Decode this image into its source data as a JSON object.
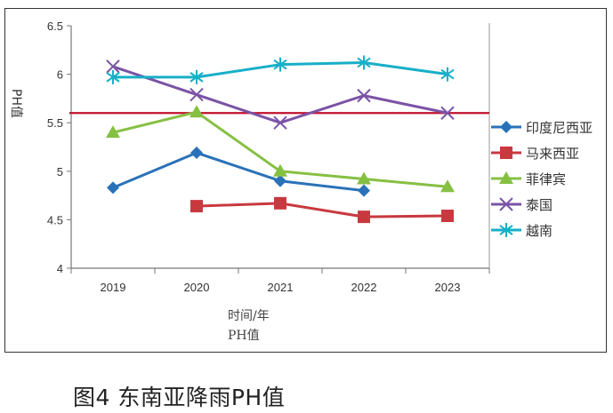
{
  "chart_data": {
    "type": "line",
    "title": "",
    "xlabel": "时间/年",
    "xlabel2": "PH值",
    "ylabel": "PH值",
    "categories": [
      "2019",
      "2020",
      "2021",
      "2022",
      "2023"
    ],
    "ylim": [
      4,
      6.5
    ],
    "yticks": [
      "4",
      "4.5",
      "5",
      "5.5",
      "6",
      "6.5"
    ],
    "grid": false,
    "legend_position": "right",
    "reference_line": {
      "value": 5.6,
      "color": "#c0112b"
    },
    "series": [
      {
        "name": "印度尼西亚",
        "color": "#2a72b8",
        "marker": "diamond",
        "values": [
          4.83,
          5.19,
          4.9,
          4.8,
          null
        ]
      },
      {
        "name": "马来西亚",
        "color": "#c8393f",
        "marker": "square",
        "values": [
          null,
          4.64,
          4.67,
          4.53,
          4.54
        ]
      },
      {
        "name": "菲律宾",
        "color": "#86c043",
        "marker": "triangle",
        "values": [
          5.4,
          5.61,
          5.0,
          4.92,
          4.84
        ]
      },
      {
        "name": "泰国",
        "color": "#7b53a6",
        "marker": "x",
        "values": [
          6.08,
          5.79,
          5.5,
          5.78,
          5.6
        ]
      },
      {
        "name": "越南",
        "color": "#18afc8",
        "marker": "star",
        "values": [
          5.97,
          5.97,
          6.1,
          6.12,
          6.0
        ]
      }
    ]
  },
  "caption": "图4 东南亚降雨PH值"
}
